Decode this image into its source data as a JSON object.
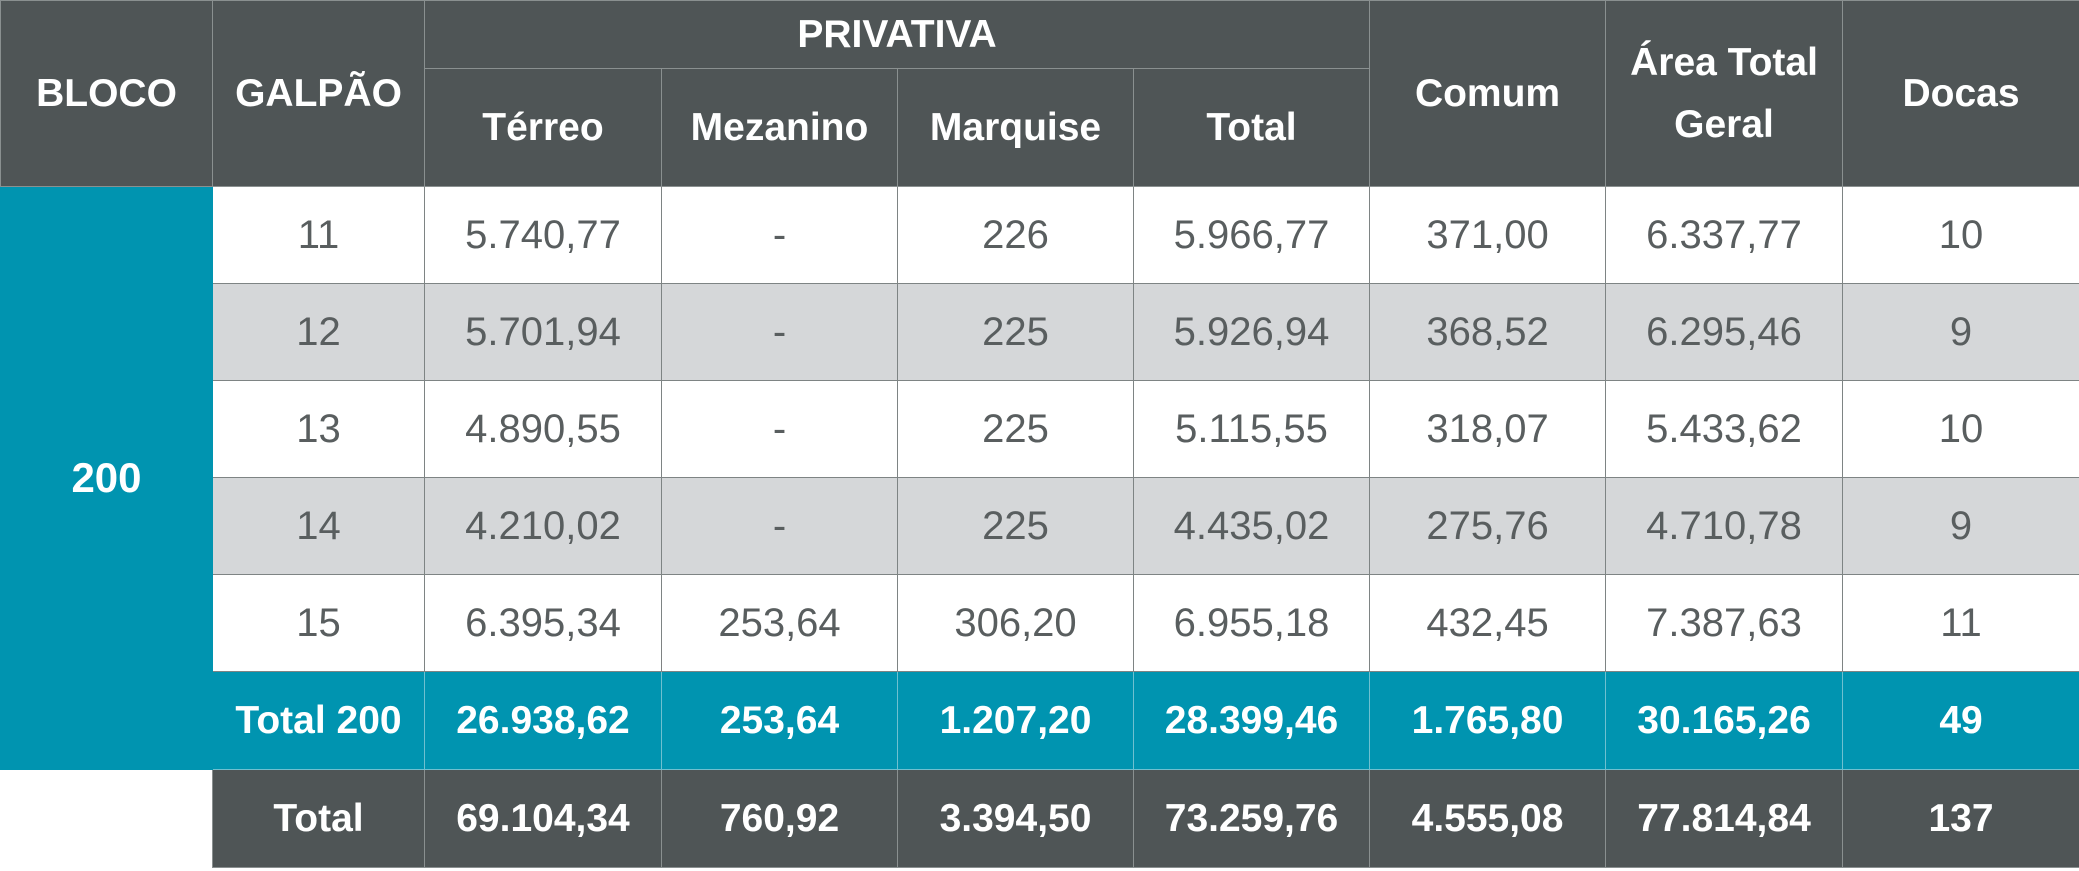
{
  "header": {
    "bloco": "BLOCO",
    "galpao": "GALPÃO",
    "privativa": "PRIVATIVA",
    "terreo": "Térreo",
    "mezanino": "Mezanino",
    "marquise": "Marquise",
    "total": "Total",
    "comum": "Comum",
    "area_total_line1": "Área Total",
    "area_total_line2": "Geral",
    "docas": "Docas"
  },
  "bloco_value": "200",
  "rows": [
    {
      "galpao": "11",
      "terreo": "5.740,77",
      "mezanino": "-",
      "marquise": "226",
      "total": "5.966,77",
      "comum": "371,00",
      "area_total": "6.337,77",
      "docas": "10"
    },
    {
      "galpao": "12",
      "terreo": "5.701,94",
      "mezanino": "-",
      "marquise": "225",
      "total": "5.926,94",
      "comum": "368,52",
      "area_total": "6.295,46",
      "docas": "9"
    },
    {
      "galpao": "13",
      "terreo": "4.890,55",
      "mezanino": "-",
      "marquise": "225",
      "total": "5.115,55",
      "comum": "318,07",
      "area_total": "5.433,62",
      "docas": "10"
    },
    {
      "galpao": "14",
      "terreo": "4.210,02",
      "mezanino": "-",
      "marquise": "225",
      "total": "4.435,02",
      "comum": "275,76",
      "area_total": "4.710,78",
      "docas": "9"
    },
    {
      "galpao": "15",
      "terreo": "6.395,34",
      "mezanino": "253,64",
      "marquise": "306,20",
      "total": "6.955,18",
      "comum": "432,45",
      "area_total": "7.387,63",
      "docas": "11"
    }
  ],
  "total_bloco": {
    "label": "Total 200",
    "terreo": "26.938,62",
    "mezanino": "253,64",
    "marquise": "1.207,20",
    "total": "28.399,46",
    "comum": "1.765,80",
    "area_total": "30.165,26",
    "docas": "49"
  },
  "grand_total": {
    "label": "Total",
    "terreo": "69.104,34",
    "mezanino": "760,92",
    "marquise": "3.394,50",
    "total": "73.259,76",
    "comum": "4.555,08",
    "area_total": "77.814,84",
    "docas": "137"
  }
}
